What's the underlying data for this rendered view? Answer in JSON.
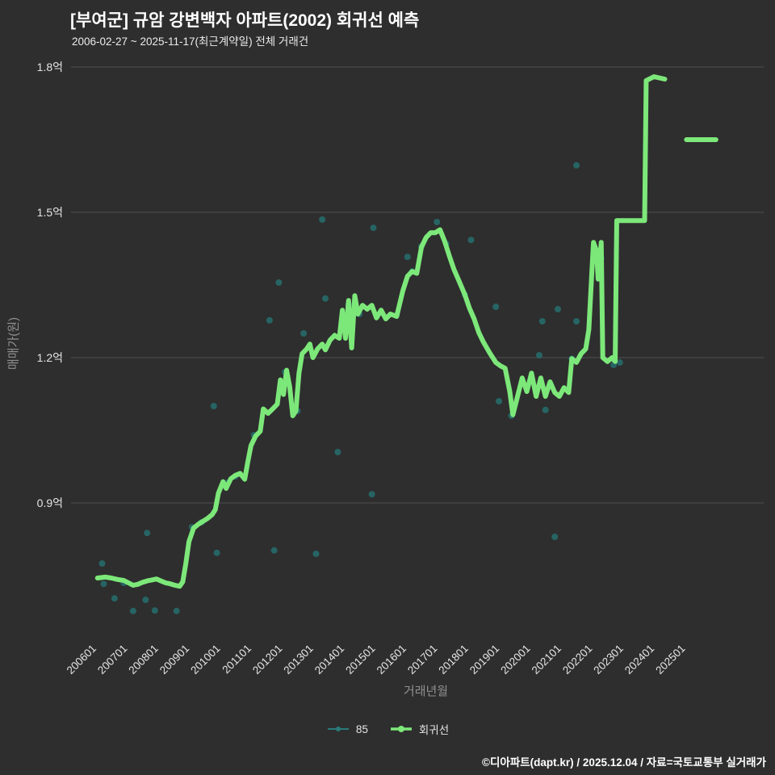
{
  "colors": {
    "background": "#2e2e2e",
    "title": "#ffffff",
    "subtitle": "#ececec",
    "grid": "#505050",
    "tick_label": "#e5e5e5",
    "axis_title": "#909090",
    "scatter": "#267272",
    "line": "#7de87a",
    "footer": "#ffffff"
  },
  "footer": {
    "credit": "©디아파트(dapt.kr) / 2025.12.04 / 자료=국토교통부 실거래가"
  },
  "chart_data": {
    "type": "line",
    "title": "[부여군] 규암 강변백자 아파트(2002) 회귀선 예측",
    "subtitle": "2006-02-27 ~ 2025-11-17(최근계약일) 전체 거래건",
    "xlabel": "거래년월",
    "ylabel": "매매가(원)",
    "y_unit": "억",
    "grid": true,
    "legend_position": "bottom",
    "ylim": [
      0.625,
      1.8
    ],
    "xlim": [
      2005.3,
      2027.5
    ],
    "y_ticks": [
      {
        "value": 0.9,
        "label": "0.9억"
      },
      {
        "value": 1.2,
        "label": "1.2억"
      },
      {
        "value": 1.5,
        "label": "1.5억"
      },
      {
        "value": 1.8,
        "label": "1.8억"
      }
    ],
    "x_ticks": [
      {
        "value": 2006,
        "label": "200601"
      },
      {
        "value": 2007,
        "label": "200701"
      },
      {
        "value": 2008,
        "label": "200801"
      },
      {
        "value": 2009,
        "label": "200901"
      },
      {
        "value": 2010,
        "label": "201001"
      },
      {
        "value": 2011,
        "label": "201101"
      },
      {
        "value": 2012,
        "label": "201201"
      },
      {
        "value": 2013,
        "label": "201301"
      },
      {
        "value": 2014,
        "label": "201401"
      },
      {
        "value": 2015,
        "label": "201501"
      },
      {
        "value": 2016,
        "label": "201601"
      },
      {
        "value": 2017,
        "label": "201701"
      },
      {
        "value": 2018,
        "label": "201801"
      },
      {
        "value": 2019,
        "label": "201901"
      },
      {
        "value": 2020,
        "label": "202001"
      },
      {
        "value": 2021,
        "label": "202101"
      },
      {
        "value": 2022,
        "label": "202201"
      },
      {
        "value": 2023,
        "label": "202301"
      },
      {
        "value": 2024,
        "label": "202401"
      },
      {
        "value": 2025,
        "label": "202501"
      }
    ],
    "legend": [
      {
        "label": "85",
        "color": "#2a7a7a",
        "type": "scatter"
      },
      {
        "label": "회귀선",
        "color": "#7de87a",
        "type": "line"
      }
    ],
    "series": [
      {
        "name": "85",
        "type": "scatter",
        "color": "#267272",
        "points": [
          [
            2006.3,
            0.775
          ],
          [
            2006.35,
            0.733
          ],
          [
            2006.7,
            0.703
          ],
          [
            2007.0,
            0.735
          ],
          [
            2007.3,
            0.677
          ],
          [
            2007.7,
            0.7
          ],
          [
            2007.75,
            0.838
          ],
          [
            2008.0,
            0.678
          ],
          [
            2008.7,
            0.677
          ],
          [
            2009.2,
            0.85
          ],
          [
            2009.5,
            0.86
          ],
          [
            2009.9,
            1.1
          ],
          [
            2010.0,
            0.797
          ],
          [
            2010.35,
            0.942
          ],
          [
            2010.6,
            0.955
          ],
          [
            2011.2,
            1.04
          ],
          [
            2011.7,
            1.277
          ],
          [
            2011.85,
            0.802
          ],
          [
            2012.0,
            1.355
          ],
          [
            2012.2,
            1.17
          ],
          [
            2012.6,
            1.09
          ],
          [
            2012.8,
            1.25
          ],
          [
            2013.2,
            0.795
          ],
          [
            2013.4,
            1.485
          ],
          [
            2013.5,
            1.322
          ],
          [
            2013.9,
            1.005
          ],
          [
            2014.25,
            1.31
          ],
          [
            2014.6,
            1.29
          ],
          [
            2015.0,
            0.918
          ],
          [
            2015.05,
            1.468
          ],
          [
            2015.8,
            1.288
          ],
          [
            2016.15,
            1.408
          ],
          [
            2016.3,
            1.378
          ],
          [
            2016.6,
            1.43
          ],
          [
            2017.1,
            1.48
          ],
          [
            2017.4,
            1.435
          ],
          [
            2018.0,
            1.33
          ],
          [
            2018.2,
            1.443
          ],
          [
            2019.0,
            1.305
          ],
          [
            2019.1,
            1.11
          ],
          [
            2019.5,
            1.08
          ],
          [
            2020.4,
            1.205
          ],
          [
            2020.5,
            1.275
          ],
          [
            2020.6,
            1.092
          ],
          [
            2020.9,
            0.83
          ],
          [
            2021.0,
            1.3
          ],
          [
            2021.45,
            1.198
          ],
          [
            2021.6,
            1.275
          ],
          [
            2021.6,
            1.597
          ],
          [
            2022.4,
            1.405
          ],
          [
            2022.8,
            1.185
          ],
          [
            2023.0,
            1.19
          ]
        ]
      },
      {
        "name": "회귀선",
        "type": "line",
        "color": "#7de87a",
        "stroke_width": 6,
        "segments": [
          [
            [
              2006.15,
              0.745
            ],
            [
              2006.4,
              0.747
            ],
            [
              2006.6,
              0.745
            ],
            [
              2006.8,
              0.742
            ],
            [
              2007.0,
              0.74
            ],
            [
              2007.15,
              0.735
            ],
            [
              2007.3,
              0.73
            ],
            [
              2007.45,
              0.732
            ],
            [
              2007.6,
              0.736
            ],
            [
              2007.75,
              0.739
            ],
            [
              2007.9,
              0.741
            ],
            [
              2008.05,
              0.743
            ],
            [
              2008.2,
              0.739
            ],
            [
              2008.35,
              0.735
            ],
            [
              2008.5,
              0.733
            ],
            [
              2008.65,
              0.73
            ],
            [
              2008.8,
              0.728
            ],
            [
              2008.9,
              0.737
            ],
            [
              2009.0,
              0.775
            ],
            [
              2009.1,
              0.82
            ],
            [
              2009.25,
              0.848
            ],
            [
              2009.4,
              0.856
            ],
            [
              2009.55,
              0.862
            ],
            [
              2009.7,
              0.868
            ],
            [
              2009.85,
              0.876
            ],
            [
              2009.95,
              0.886
            ],
            [
              2010.05,
              0.92
            ],
            [
              2010.2,
              0.944
            ],
            [
              2010.3,
              0.93
            ],
            [
              2010.45,
              0.95
            ],
            [
              2010.6,
              0.957
            ],
            [
              2010.75,
              0.961
            ],
            [
              2010.9,
              0.949
            ],
            [
              2011.0,
              0.985
            ],
            [
              2011.1,
              1.018
            ],
            [
              2011.25,
              1.038
            ],
            [
              2011.4,
              1.048
            ],
            [
              2011.5,
              1.094
            ],
            [
              2011.65,
              1.085
            ],
            [
              2011.8,
              1.094
            ],
            [
              2011.95,
              1.104
            ],
            [
              2012.05,
              1.154
            ],
            [
              2012.15,
              1.124
            ],
            [
              2012.25,
              1.174
            ],
            [
              2012.35,
              1.14
            ],
            [
              2012.45,
              1.08
            ],
            [
              2012.55,
              1.09
            ],
            [
              2012.65,
              1.168
            ],
            [
              2012.75,
              1.208
            ],
            [
              2012.9,
              1.218
            ],
            [
              2013.0,
              1.228
            ],
            [
              2013.1,
              1.2
            ],
            [
              2013.25,
              1.218
            ],
            [
              2013.4,
              1.228
            ],
            [
              2013.5,
              1.216
            ],
            [
              2013.65,
              1.236
            ],
            [
              2013.8,
              1.246
            ],
            [
              2013.95,
              1.24
            ],
            [
              2014.05,
              1.298
            ],
            [
              2014.15,
              1.24
            ],
            [
              2014.25,
              1.318
            ],
            [
              2014.35,
              1.22
            ],
            [
              2014.45,
              1.328
            ],
            [
              2014.55,
              1.29
            ],
            [
              2014.7,
              1.308
            ],
            [
              2014.85,
              1.3
            ],
            [
              2015.0,
              1.308
            ],
            [
              2015.15,
              1.282
            ],
            [
              2015.3,
              1.298
            ],
            [
              2015.45,
              1.28
            ],
            [
              2015.6,
              1.29
            ],
            [
              2015.8,
              1.285
            ],
            [
              2016.0,
              1.338
            ],
            [
              2016.15,
              1.368
            ],
            [
              2016.3,
              1.378
            ],
            [
              2016.45,
              1.374
            ],
            [
              2016.6,
              1.428
            ],
            [
              2016.75,
              1.448
            ],
            [
              2016.9,
              1.458
            ],
            [
              2017.05,
              1.458
            ],
            [
              2017.2,
              1.464
            ],
            [
              2017.35,
              1.44
            ],
            [
              2017.5,
              1.41
            ],
            [
              2017.65,
              1.382
            ],
            [
              2017.8,
              1.36
            ],
            [
              2018.0,
              1.33
            ],
            [
              2018.15,
              1.302
            ],
            [
              2018.3,
              1.28
            ],
            [
              2018.45,
              1.252
            ],
            [
              2018.6,
              1.232
            ],
            [
              2018.8,
              1.21
            ],
            [
              2019.0,
              1.19
            ],
            [
              2019.15,
              1.183
            ],
            [
              2019.3,
              1.178
            ],
            [
              2019.45,
              1.13
            ],
            [
              2019.55,
              1.082
            ],
            [
              2019.7,
              1.12
            ],
            [
              2019.85,
              1.158
            ],
            [
              2020.0,
              1.13
            ],
            [
              2020.15,
              1.168
            ],
            [
              2020.3,
              1.12
            ],
            [
              2020.45,
              1.158
            ],
            [
              2020.6,
              1.12
            ],
            [
              2020.75,
              1.15
            ],
            [
              2020.9,
              1.128
            ],
            [
              2021.05,
              1.12
            ],
            [
              2021.2,
              1.138
            ],
            [
              2021.35,
              1.128
            ],
            [
              2021.45,
              1.198
            ],
            [
              2021.6,
              1.19
            ],
            [
              2021.75,
              1.208
            ],
            [
              2021.9,
              1.218
            ],
            [
              2022.0,
              1.258
            ],
            [
              2022.1,
              1.38
            ],
            [
              2022.15,
              1.438
            ],
            [
              2022.25,
              1.42
            ],
            [
              2022.3,
              1.362
            ],
            [
              2022.4,
              1.438
            ],
            [
              2022.45,
              1.2
            ],
            [
              2022.6,
              1.192
            ],
            [
              2022.75,
              1.2
            ],
            [
              2022.85,
              1.192
            ],
            [
              2022.9,
              1.483
            ],
            [
              2023.3,
              1.483
            ],
            [
              2023.8,
              1.483
            ],
            [
              2023.85,
              1.772
            ],
            [
              2024.1,
              1.78
            ],
            [
              2024.45,
              1.775
            ]
          ],
          [
            [
              2025.15,
              1.65
            ],
            [
              2026.1,
              1.65
            ]
          ]
        ]
      }
    ]
  }
}
